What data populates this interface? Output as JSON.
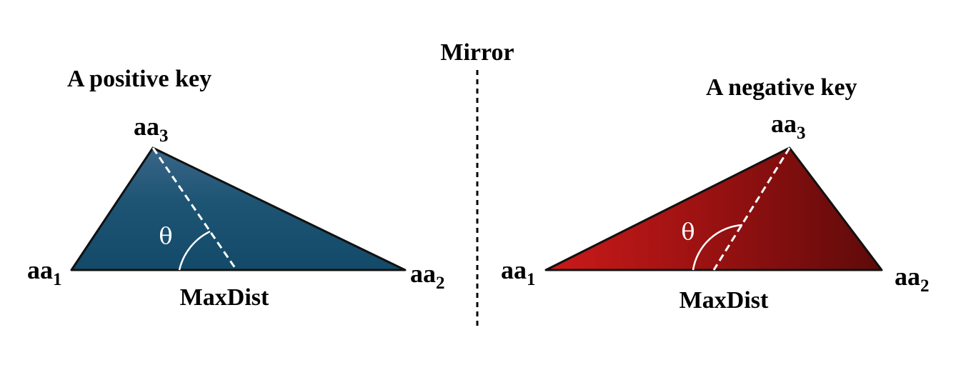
{
  "mirror": {
    "label": "Mirror"
  },
  "positive_key": {
    "title": "A positive key",
    "vertex_1": {
      "base": "aa",
      "sub": "1"
    },
    "vertex_2": {
      "base": "aa",
      "sub": "2"
    },
    "vertex_3": {
      "base": "aa",
      "sub": "3"
    },
    "angle_symbol": "θ",
    "base_label": "MaxDist",
    "fill_colors": [
      "#3a6688",
      "#1d5473",
      "#134a69"
    ]
  },
  "negative_key": {
    "title": "A negative key",
    "vertex_1": {
      "base": "aa",
      "sub": "1"
    },
    "vertex_2": {
      "base": "aa",
      "sub": "2"
    },
    "vertex_3": {
      "base": "aa",
      "sub": "3"
    },
    "angle_symbol": "θ",
    "base_label": "MaxDist",
    "fill_colors": [
      "#cc1a1a",
      "#9e1212",
      "#5e0a0a"
    ]
  }
}
